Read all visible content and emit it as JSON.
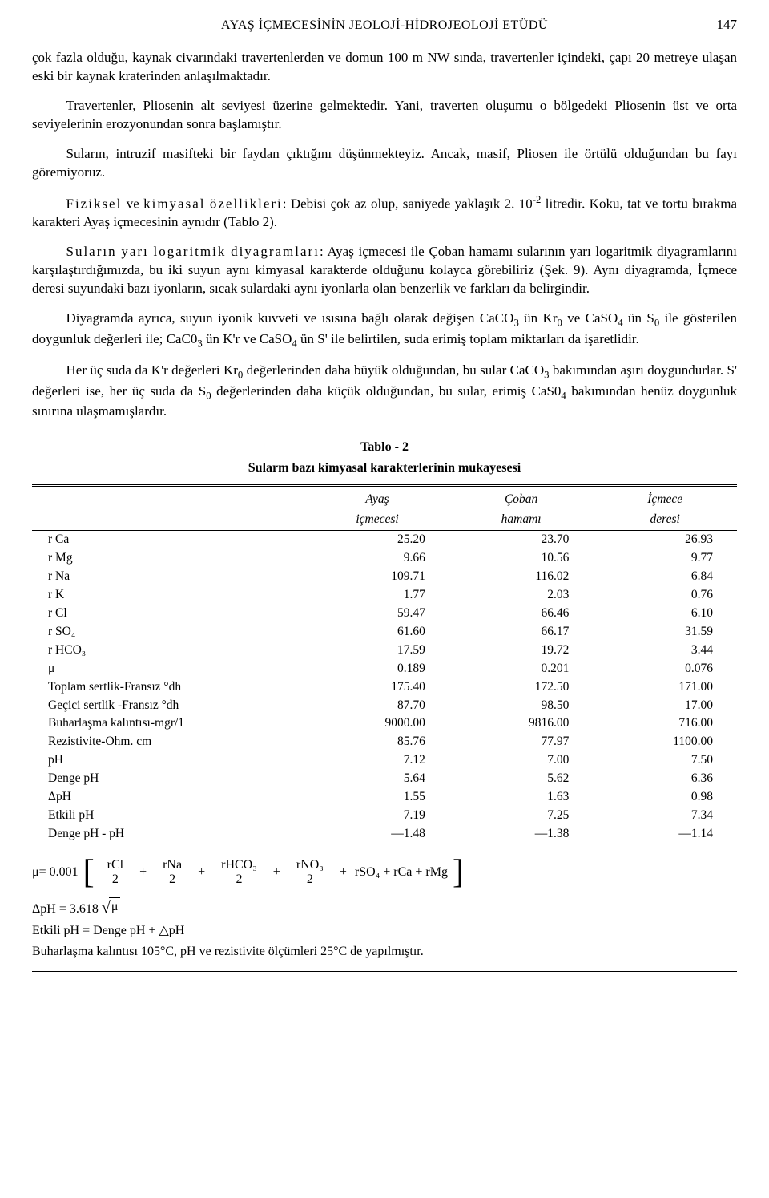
{
  "header": {
    "running_title": "AYAŞ İÇMECESİNİN JEOLOJİ-HİDROJEOLOJİ ETÜDÜ",
    "page_number": "147"
  },
  "paragraphs": {
    "p1": "çok fazla olduğu, kaynak civarındaki travertenlerden ve domun 100 m NW sında, travertenler içindeki, çapı 20 metreye ulaşan eski bir kaynak kraterinden anlaşılmaktadır.",
    "p2": "Travertenler, Pliosenin alt seviyesi üzerine gelmektedir. Yani, traverten oluşumu o bölgedeki Pliosenin üst ve orta seviyelerinin erozyonundan sonra başlamıştır.",
    "p3": "Suların, intruzif masifteki bir faydan çıktığını düşünmekteyiz. Ancak, masif, Pliosen ile örtülü olduğundan bu fayı göremiyoruz.",
    "p4a": "Fiziksel",
    "p4b": "kimyasal",
    "p4c": "özellikleri",
    "p4rest": ": Debisi çok az olup, saniyede yaklaşık 2. 10",
    "p4sup": "-2",
    "p4end": " litredir. Koku, tat ve tortu bırakma karakteri Ayaş içmecesinin aynıdır (Tablo 2).",
    "p5a": "Suların",
    "p5b": "yarı",
    "p5c": "logaritmik",
    "p5d": "diyagramları",
    "p5rest": ": Ayaş içmecesi ile Çoban hamamı sularının yarı logaritmik diyagramlarını karşılaştırdığımızda, bu iki suyun aynı kimyasal karakterde olduğunu kolayca görebiliriz (Şek. 9). Aynı diyagramda, İçmece deresi suyundaki bazı iyonların, sıcak sulardaki aynı iyonlarla olan benzerlik ve farkları da belirgindir.",
    "p6a": "Diyagramda ayrıca, suyun iyonik kuvveti ve ısısına bağlı olarak değişen CaCO",
    "p6b": " ün Kr",
    "p6c": " ve CaSO",
    "p6d": " ün S",
    "p6e": " ile gösterilen doygunluk değerleri ile; CaC0",
    "p6f": " ün K'r ve CaSO",
    "p6g": " ün S' ile belirtilen, suda erimiş toplam miktarları da işaretlidir.",
    "p7a": "Her üç suda da K'r değerleri Kr",
    "p7b": " değerlerinden daha büyük olduğundan, bu sular CaCO",
    "p7c": " bakımından aşırı doygundurlar. S' değerleri ise, her üç suda da S",
    "p7d": " değerlerinden daha küçük olduğundan, bu sular, erimiş CaS0",
    "p7e": " bakımından henüz doygunluk sınırına ulaşmamışlardır."
  },
  "table": {
    "title": "Tablo - 2",
    "subtitle": "Sularm bazı kimyasal karakterlerinin mukayesesi",
    "col1a": "Ayaş",
    "col1b": "içmecesi",
    "col2a": "Çoban",
    "col2b": "hamamı",
    "col3a": "İçmece",
    "col3b": "deresi",
    "rows": [
      {
        "label": "r Ca",
        "a": "25.20",
        "b": "23.70",
        "c": "26.93"
      },
      {
        "label": "r Mg",
        "a": "9.66",
        "b": "10.56",
        "c": "9.77"
      },
      {
        "label": "r Na",
        "a": "109.71",
        "b": "116.02",
        "c": "6.84"
      },
      {
        "label": "r K",
        "a": "1.77",
        "b": "2.03",
        "c": "0.76"
      },
      {
        "label": "r Cl",
        "a": "59.47",
        "b": "66.46",
        "c": "6.10"
      },
      {
        "label": "r SO₄",
        "a": "61.60",
        "b": "66.17",
        "c": "31.59"
      },
      {
        "label": "r HCO₃",
        "a": "17.59",
        "b": "19.72",
        "c": "3.44"
      },
      {
        "label": "μ",
        "a": "0.189",
        "b": "0.201",
        "c": "0.076"
      },
      {
        "label": "Toplam sertlik-Fransız °dh",
        "a": "175.40",
        "b": "172.50",
        "c": "171.00"
      },
      {
        "label": "Geçici sertlik -Fransız °dh",
        "a": "87.70",
        "b": "98.50",
        "c": "17.00"
      },
      {
        "label": "Buharlaşma kalıntısı-mgr/1",
        "a": "9000.00",
        "b": "9816.00",
        "c": "716.00"
      },
      {
        "label": "Rezistivite-Ohm. cm",
        "a": "85.76",
        "b": "77.97",
        "c": "1100.00"
      },
      {
        "label": "pH",
        "a": "7.12",
        "b": "7.00",
        "c": "7.50"
      },
      {
        "label": "Denge pH",
        "a": "5.64",
        "b": "5.62",
        "c": "6.36"
      },
      {
        "label": "ΔpH",
        "a": "1.55",
        "b": "1.63",
        "c": "0.98"
      },
      {
        "label": "Etkili pH",
        "a": "7.19",
        "b": "7.25",
        "c": "7.34"
      },
      {
        "label": "Denge pH - pH",
        "a": "—1.48",
        "b": "—1.38",
        "c": "—1.14"
      }
    ]
  },
  "formulas": {
    "mu_label": "μ= 0.001",
    "f1": "rCl",
    "f2": "rNa",
    "f3": "rHCO₃",
    "f4": "rNO₃",
    "den": "2",
    "tail": "rSO₄ + rCa + rMg",
    "dph": "ΔpH = 3.618",
    "sqrt_arg": "μ",
    "eff": "Etkili pH = Denge pH + △pH",
    "note": "Buharlaşma kalıntısı 105°C, pH ve rezistivite ölçümleri 25°C de yapılmıştır."
  }
}
